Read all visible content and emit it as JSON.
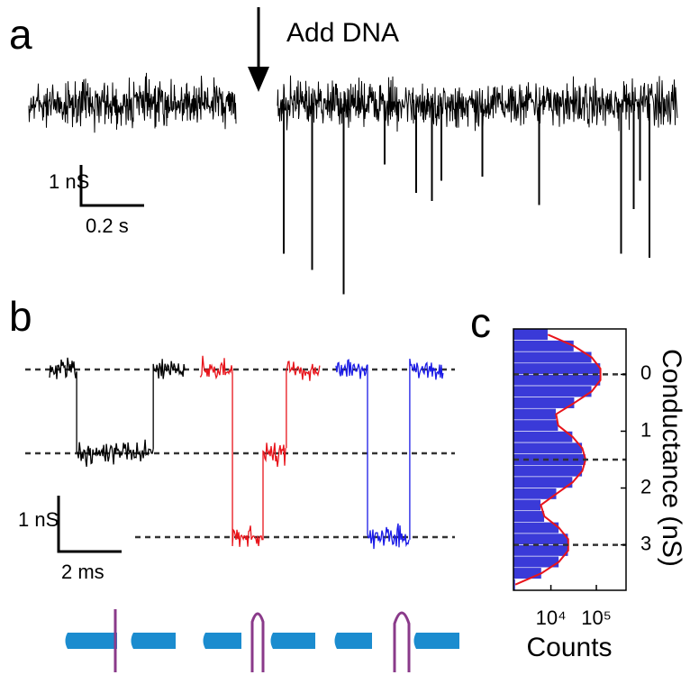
{
  "panel_a": {
    "label": "a",
    "annotation": "Add DNA",
    "scale_y": "1 nS",
    "scale_x": "0.2 s",
    "spikes": [
      {
        "time": 0.02,
        "depth": 3.7
      },
      {
        "time": 0.11,
        "depth": 4.1
      },
      {
        "time": 0.21,
        "depth": 4.7
      },
      {
        "time": 0.34,
        "depth": 1.5
      },
      {
        "time": 0.44,
        "depth": 2.2
      },
      {
        "time": 0.49,
        "depth": 2.4
      },
      {
        "time": 0.52,
        "depth": 1.9
      },
      {
        "time": 0.65,
        "depth": 1.8
      },
      {
        "time": 0.83,
        "depth": 2.5
      },
      {
        "time": 1.09,
        "depth": 3.7
      },
      {
        "time": 1.13,
        "depth": 2.6
      },
      {
        "time": 1.15,
        "depth": 1.9
      },
      {
        "time": 1.18,
        "depth": 3.8
      }
    ]
  },
  "panel_b": {
    "label": "b",
    "scale_y": "1 nS",
    "scale_x": "2 ms",
    "levels": [
      0,
      1.5,
      3
    ],
    "traces": [
      {
        "color": "#000000",
        "levels": [
          0,
          1.5,
          0
        ],
        "durations": [
          0.86,
          2.43,
          1.0
        ]
      },
      {
        "color": "#e8141b",
        "levels": [
          0,
          3,
          1.5,
          0
        ],
        "durations": [
          1.03,
          0.97,
          0.74,
          1.06
        ]
      },
      {
        "color": "#1a1ae6",
        "levels": [
          0,
          3,
          0
        ],
        "durations": [
          1.0,
          1.34,
          1.06
        ]
      }
    ]
  },
  "chart_data": {
    "type": "histogram",
    "label": "c",
    "x_label": "Counts",
    "y_label": "Conductance (nS)",
    "log_x": true,
    "color": "#3a3ad8",
    "fit_color": "#e8141b",
    "bins": [
      -0.8,
      -0.6,
      -0.4,
      -0.2,
      0,
      0.2,
      0.4,
      0.6,
      0.8,
      1.0,
      1.2,
      1.4,
      1.6,
      1.8,
      2.0,
      2.2,
      2.4,
      2.6,
      2.8,
      3.0,
      3.2,
      3.4,
      3.6,
      3.8
    ],
    "values": [
      8600,
      32000,
      79000,
      123000,
      123000,
      79000,
      33000,
      13000,
      14500,
      30000,
      49000,
      58000,
      49000,
      30000,
      13300,
      6000,
      7200,
      15000,
      24000,
      24000,
      15000,
      6200,
      1650
    ],
    "xlim": [
      1500,
      450000
    ],
    "xticks": [
      {
        "value": 10000,
        "label": "10⁴"
      },
      {
        "value": 100000,
        "label": "10⁵"
      }
    ],
    "ylim": [
      -0.8,
      3.8
    ],
    "yticks": [
      0,
      1,
      2,
      3
    ]
  }
}
